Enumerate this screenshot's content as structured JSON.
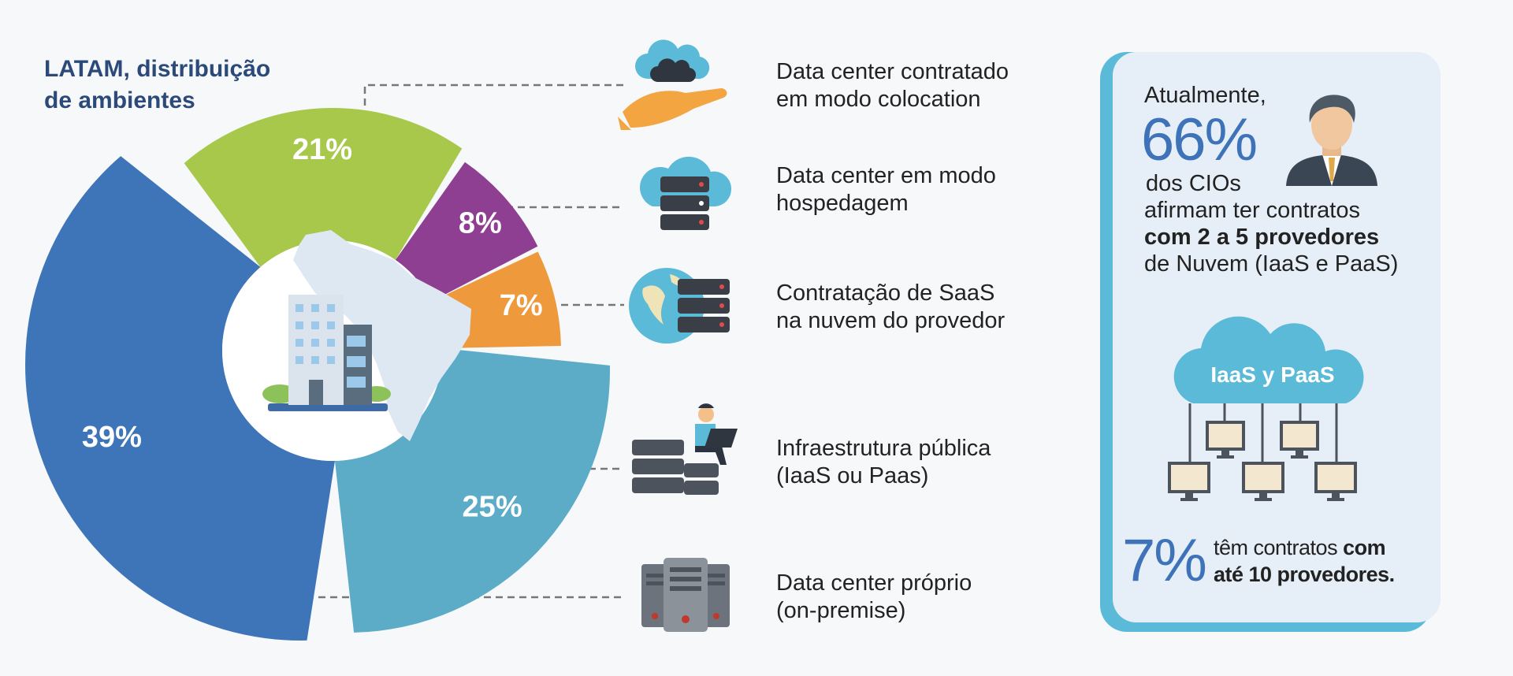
{
  "chart_data": {
    "type": "pie",
    "title": "LATAM, distribuição de ambientes",
    "title_lines": [
      "LATAM, distribuição",
      "de ambientes"
    ],
    "categories": [
      "Data center contratado em modo colocation",
      "Data center em modo hospedagem",
      "Contratação de SaaS na nuvem do provedor",
      "Infraestrutura pública (IaaS ou Paas)",
      "Data center próprio (on-premise)"
    ],
    "values": [
      21,
      8,
      7,
      25,
      39
    ],
    "labels": [
      "21%",
      "8%",
      "7%",
      "25%",
      "39%"
    ],
    "colors": [
      "#a7c84b",
      "#8e3f92",
      "#ee9a3c",
      "#5cacc8",
      "#3e75b9"
    ],
    "style": "donut with exploded segments"
  },
  "legend": [
    {
      "lines": [
        "Data center contratado",
        "em modo colocation"
      ],
      "icon": "hand-cloud-icon"
    },
    {
      "lines": [
        "Data center em modo",
        "hospedagem"
      ],
      "icon": "cloud-server-icon"
    },
    {
      "lines": [
        "Contratação de SaaS",
        "na nuvem do provedor"
      ],
      "icon": "globe-server-icon"
    },
    {
      "lines": [
        "Infraestrutura pública",
        "(IaaS ou Paas)"
      ],
      "icon": "person-laptop-servers-icon"
    },
    {
      "lines": [
        "Data center próprio",
        "(on-premise)"
      ],
      "icon": "server-towers-icon"
    }
  ],
  "panel": {
    "line1": "Atualmente,",
    "big_pct": "66%",
    "line2": "dos CIOs",
    "line3": "afirmam ter contratos",
    "line4": "com 2 a 5 provedores",
    "line5": "de Nuvem (IaaS e PaaS)",
    "cloud_label": "IaaS y PaaS",
    "small_pct": "7%",
    "foot_line1_a": "têm contratos ",
    "foot_line1_b": "com",
    "foot_line2": "até 10 provedores.",
    "accent": "#3e73b9"
  }
}
